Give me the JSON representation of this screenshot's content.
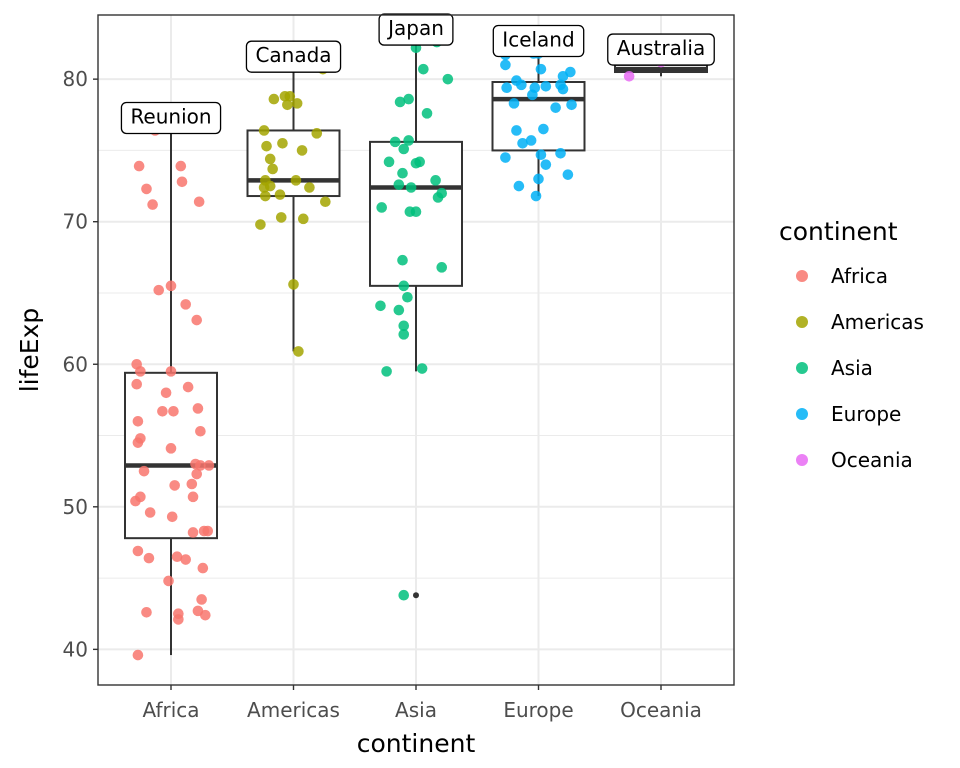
{
  "chart_data": {
    "type": "boxplot-with-jitter",
    "xlabel": "continent",
    "ylabel": "lifeExp",
    "ylim": [
      37.5,
      84.5
    ],
    "yticks": [
      40,
      50,
      60,
      70,
      80
    ],
    "categories": [
      "Africa",
      "Americas",
      "Asia",
      "Europe",
      "Oceania"
    ],
    "grid": true,
    "legend": {
      "title": "continent",
      "position": "right",
      "entries": [
        "Africa",
        "Americas",
        "Asia",
        "Europe",
        "Oceania"
      ]
    },
    "colors": {
      "Africa": "#F8766D",
      "Americas": "#A3A500",
      "Asia": "#00BF7D",
      "Europe": "#00B0F6",
      "Oceania": "#E76BF3"
    },
    "boxes": [
      {
        "category": "Africa",
        "min": 39.6,
        "q1": 47.8,
        "median": 52.9,
        "q3": 59.4,
        "max": 76.4
      },
      {
        "category": "Americas",
        "min": 60.9,
        "q1": 71.8,
        "median": 72.9,
        "q3": 76.4,
        "max": 80.7
      },
      {
        "category": "Asia",
        "min": 59.5,
        "q1": 65.5,
        "median": 72.4,
        "q3": 75.6,
        "max": 82.6
      },
      {
        "category": "Europe",
        "min": 71.8,
        "q1": 75.0,
        "median": 78.6,
        "q3": 79.8,
        "max": 81.8
      },
      {
        "category": "Oceania",
        "min": 80.2,
        "q1": 80.5,
        "median": 80.7,
        "q3": 81.0,
        "max": 81.2
      }
    ],
    "outliers": [
      {
        "category": "Asia",
        "y": 43.8
      }
    ],
    "annotations": [
      {
        "category": "Africa",
        "label": "Reunion",
        "y": 76.4
      },
      {
        "category": "Americas",
        "label": "Canada",
        "y": 80.7
      },
      {
        "category": "Asia",
        "label": "Japan",
        "y": 82.6
      },
      {
        "category": "Europe",
        "label": "Iceland",
        "y": 81.8
      },
      {
        "category": "Oceania",
        "label": "Australia",
        "y": 81.2
      }
    ],
    "points": [
      {
        "category": "Africa",
        "jitter": -0.27,
        "y": 39.6
      },
      {
        "category": "Africa",
        "jitter": 0.06,
        "y": 42.1
      },
      {
        "category": "Africa",
        "jitter": -0.2,
        "y": 42.6
      },
      {
        "category": "Africa",
        "jitter": 0.28,
        "y": 42.4
      },
      {
        "category": "Africa",
        "jitter": 0.22,
        "y": 42.7
      },
      {
        "category": "Africa",
        "jitter": 0.25,
        "y": 43.5
      },
      {
        "category": "Africa",
        "jitter": 0.06,
        "y": 42.5
      },
      {
        "category": "Africa",
        "jitter": -0.02,
        "y": 44.8
      },
      {
        "category": "Africa",
        "jitter": 0.26,
        "y": 45.7
      },
      {
        "category": "Africa",
        "jitter": -0.27,
        "y": 46.9
      },
      {
        "category": "Africa",
        "jitter": 0.05,
        "y": 46.5
      },
      {
        "category": "Africa",
        "jitter": -0.18,
        "y": 46.4
      },
      {
        "category": "Africa",
        "jitter": 0.12,
        "y": 46.3
      },
      {
        "category": "Africa",
        "jitter": 0.18,
        "y": 48.2
      },
      {
        "category": "Africa",
        "jitter": 0.27,
        "y": 48.3
      },
      {
        "category": "Africa",
        "jitter": 0.3,
        "y": 48.3
      },
      {
        "category": "Africa",
        "jitter": 0.01,
        "y": 49.3
      },
      {
        "category": "Africa",
        "jitter": -0.17,
        "y": 49.6
      },
      {
        "category": "Africa",
        "jitter": -0.29,
        "y": 50.4
      },
      {
        "category": "Africa",
        "jitter": -0.25,
        "y": 50.7
      },
      {
        "category": "Africa",
        "jitter": 0.18,
        "y": 50.7
      },
      {
        "category": "Africa",
        "jitter": 0.03,
        "y": 51.5
      },
      {
        "category": "Africa",
        "jitter": 0.17,
        "y": 51.6
      },
      {
        "category": "Africa",
        "jitter": -0.22,
        "y": 52.5
      },
      {
        "category": "Africa",
        "jitter": 0.21,
        "y": 52.3
      },
      {
        "category": "Africa",
        "jitter": 0.24,
        "y": 52.9
      },
      {
        "category": "Africa",
        "jitter": 0.31,
        "y": 52.9
      },
      {
        "category": "Africa",
        "jitter": 0.2,
        "y": 53.0
      },
      {
        "category": "Africa",
        "jitter": 0.0,
        "y": 54.1
      },
      {
        "category": "Africa",
        "jitter": -0.27,
        "y": 54.5
      },
      {
        "category": "Africa",
        "jitter": -0.25,
        "y": 54.8
      },
      {
        "category": "Africa",
        "jitter": 0.24,
        "y": 55.3
      },
      {
        "category": "Africa",
        "jitter": -0.27,
        "y": 56.0
      },
      {
        "category": "Africa",
        "jitter": -0.07,
        "y": 56.7
      },
      {
        "category": "Africa",
        "jitter": 0.02,
        "y": 56.7
      },
      {
        "category": "Africa",
        "jitter": 0.22,
        "y": 56.9
      },
      {
        "category": "Africa",
        "jitter": -0.04,
        "y": 58.0
      },
      {
        "category": "Africa",
        "jitter": 0.14,
        "y": 58.4
      },
      {
        "category": "Africa",
        "jitter": -0.28,
        "y": 58.6
      },
      {
        "category": "Africa",
        "jitter": -0.25,
        "y": 59.5
      },
      {
        "category": "Africa",
        "jitter": 0.0,
        "y": 59.5
      },
      {
        "category": "Africa",
        "jitter": -0.28,
        "y": 60.0
      },
      {
        "category": "Africa",
        "jitter": 0.21,
        "y": 63.1
      },
      {
        "category": "Africa",
        "jitter": 0.12,
        "y": 64.2
      },
      {
        "category": "Africa",
        "jitter": -0.1,
        "y": 65.2
      },
      {
        "category": "Africa",
        "jitter": 0.0,
        "y": 65.5
      },
      {
        "category": "Africa",
        "jitter": -0.15,
        "y": 71.2
      },
      {
        "category": "Africa",
        "jitter": 0.23,
        "y": 71.4
      },
      {
        "category": "Africa",
        "jitter": -0.2,
        "y": 72.3
      },
      {
        "category": "Africa",
        "jitter": 0.09,
        "y": 72.8
      },
      {
        "category": "Africa",
        "jitter": -0.26,
        "y": 73.9
      },
      {
        "category": "Africa",
        "jitter": 0.08,
        "y": 73.9
      },
      {
        "category": "Africa",
        "jitter": -0.13,
        "y": 76.4
      },
      {
        "category": "Americas",
        "jitter": 0.04,
        "y": 60.9
      },
      {
        "category": "Americas",
        "jitter": 0.0,
        "y": 65.6
      },
      {
        "category": "Americas",
        "jitter": -0.27,
        "y": 69.8
      },
      {
        "category": "Americas",
        "jitter": -0.1,
        "y": 70.3
      },
      {
        "category": "Americas",
        "jitter": 0.08,
        "y": 70.2
      },
      {
        "category": "Americas",
        "jitter": -0.23,
        "y": 71.8
      },
      {
        "category": "Americas",
        "jitter": -0.11,
        "y": 71.9
      },
      {
        "category": "Americas",
        "jitter": 0.26,
        "y": 71.4
      },
      {
        "category": "Americas",
        "jitter": -0.24,
        "y": 72.4
      },
      {
        "category": "Americas",
        "jitter": -0.19,
        "y": 72.5
      },
      {
        "category": "Americas",
        "jitter": 0.13,
        "y": 72.4
      },
      {
        "category": "Americas",
        "jitter": -0.23,
        "y": 72.9
      },
      {
        "category": "Americas",
        "jitter": 0.02,
        "y": 72.9
      },
      {
        "category": "Americas",
        "jitter": -0.17,
        "y": 73.7
      },
      {
        "category": "Americas",
        "jitter": -0.19,
        "y": 74.4
      },
      {
        "category": "Americas",
        "jitter": 0.07,
        "y": 75.0
      },
      {
        "category": "Americas",
        "jitter": -0.22,
        "y": 75.3
      },
      {
        "category": "Americas",
        "jitter": -0.09,
        "y": 75.5
      },
      {
        "category": "Americas",
        "jitter": -0.24,
        "y": 76.4
      },
      {
        "category": "Americas",
        "jitter": 0.19,
        "y": 76.2
      },
      {
        "category": "Americas",
        "jitter": -0.16,
        "y": 78.6
      },
      {
        "category": "Americas",
        "jitter": -0.07,
        "y": 78.8
      },
      {
        "category": "Americas",
        "jitter": -0.05,
        "y": 78.2
      },
      {
        "category": "Americas",
        "jitter": 0.03,
        "y": 78.3
      },
      {
        "category": "Americas",
        "jitter": -0.03,
        "y": 78.8
      },
      {
        "category": "Americas",
        "jitter": 0.24,
        "y": 80.7
      },
      {
        "category": "Asia",
        "jitter": -0.29,
        "y": 64.1
      },
      {
        "category": "Asia",
        "jitter": -0.1,
        "y": 43.8
      },
      {
        "category": "Asia",
        "jitter": -0.24,
        "y": 59.5
      },
      {
        "category": "Asia",
        "jitter": 0.05,
        "y": 59.7
      },
      {
        "category": "Asia",
        "jitter": -0.1,
        "y": 62.1
      },
      {
        "category": "Asia",
        "jitter": -0.1,
        "y": 62.7
      },
      {
        "category": "Asia",
        "jitter": -0.14,
        "y": 63.8
      },
      {
        "category": "Asia",
        "jitter": -0.07,
        "y": 64.7
      },
      {
        "category": "Asia",
        "jitter": -0.1,
        "y": 65.5
      },
      {
        "category": "Asia",
        "jitter": 0.21,
        "y": 66.8
      },
      {
        "category": "Asia",
        "jitter": -0.11,
        "y": 67.3
      },
      {
        "category": "Asia",
        "jitter": -0.28,
        "y": 71.0
      },
      {
        "category": "Asia",
        "jitter": -0.05,
        "y": 70.7
      },
      {
        "category": "Asia",
        "jitter": 0.0,
        "y": 70.7
      },
      {
        "category": "Asia",
        "jitter": 0.18,
        "y": 71.7
      },
      {
        "category": "Asia",
        "jitter": 0.21,
        "y": 72.0
      },
      {
        "category": "Asia",
        "jitter": -0.04,
        "y": 72.4
      },
      {
        "category": "Asia",
        "jitter": -0.14,
        "y": 72.6
      },
      {
        "category": "Asia",
        "jitter": 0.16,
        "y": 72.9
      },
      {
        "category": "Asia",
        "jitter": -0.11,
        "y": 73.4
      },
      {
        "category": "Asia",
        "jitter": -0.22,
        "y": 74.2
      },
      {
        "category": "Asia",
        "jitter": 0.0,
        "y": 74.1
      },
      {
        "category": "Asia",
        "jitter": 0.03,
        "y": 74.2
      },
      {
        "category": "Asia",
        "jitter": -0.1,
        "y": 75.1
      },
      {
        "category": "Asia",
        "jitter": -0.17,
        "y": 75.6
      },
      {
        "category": "Asia",
        "jitter": -0.06,
        "y": 75.7
      },
      {
        "category": "Asia",
        "jitter": 0.09,
        "y": 77.6
      },
      {
        "category": "Asia",
        "jitter": -0.13,
        "y": 78.4
      },
      {
        "category": "Asia",
        "jitter": -0.06,
        "y": 78.6
      },
      {
        "category": "Asia",
        "jitter": 0.26,
        "y": 80.0
      },
      {
        "category": "Asia",
        "jitter": 0.06,
        "y": 80.7
      },
      {
        "category": "Asia",
        "jitter": 0.0,
        "y": 82.2
      },
      {
        "category": "Asia",
        "jitter": 0.17,
        "y": 82.6
      },
      {
        "category": "Europe",
        "jitter": -0.27,
        "y": 74.5
      },
      {
        "category": "Europe",
        "jitter": -0.16,
        "y": 72.5
      },
      {
        "category": "Europe",
        "jitter": -0.02,
        "y": 71.8
      },
      {
        "category": "Europe",
        "jitter": 0.0,
        "y": 73.0
      },
      {
        "category": "Europe",
        "jitter": 0.24,
        "y": 73.3
      },
      {
        "category": "Europe",
        "jitter": 0.02,
        "y": 74.7
      },
      {
        "category": "Europe",
        "jitter": 0.06,
        "y": 74.0
      },
      {
        "category": "Europe",
        "jitter": 0.18,
        "y": 74.8
      },
      {
        "category": "Europe",
        "jitter": -0.13,
        "y": 75.5
      },
      {
        "category": "Europe",
        "jitter": -0.06,
        "y": 75.7
      },
      {
        "category": "Europe",
        "jitter": -0.18,
        "y": 76.4
      },
      {
        "category": "Europe",
        "jitter": 0.04,
        "y": 76.5
      },
      {
        "category": "Europe",
        "jitter": -0.2,
        "y": 78.3
      },
      {
        "category": "Europe",
        "jitter": -0.05,
        "y": 78.9
      },
      {
        "category": "Europe",
        "jitter": 0.14,
        "y": 78.0
      },
      {
        "category": "Europe",
        "jitter": 0.27,
        "y": 78.2
      },
      {
        "category": "Europe",
        "jitter": -0.26,
        "y": 79.4
      },
      {
        "category": "Europe",
        "jitter": -0.14,
        "y": 79.6
      },
      {
        "category": "Europe",
        "jitter": -0.03,
        "y": 79.4
      },
      {
        "category": "Europe",
        "jitter": 0.06,
        "y": 79.5
      },
      {
        "category": "Europe",
        "jitter": 0.18,
        "y": 79.6
      },
      {
        "category": "Europe",
        "jitter": 0.2,
        "y": 79.3
      },
      {
        "category": "Europe",
        "jitter": -0.18,
        "y": 79.9
      },
      {
        "category": "Europe",
        "jitter": 0.2,
        "y": 80.2
      },
      {
        "category": "Europe",
        "jitter": 0.26,
        "y": 80.5
      },
      {
        "category": "Europe",
        "jitter": -0.27,
        "y": 81.0
      },
      {
        "category": "Europe",
        "jitter": -0.27,
        "y": 81.7
      },
      {
        "category": "Europe",
        "jitter": -0.04,
        "y": 81.8
      },
      {
        "category": "Europe",
        "jitter": 0.0,
        "y": 81.8
      },
      {
        "category": "Europe",
        "jitter": 0.02,
        "y": 80.7
      },
      {
        "category": "Oceania",
        "jitter": -0.26,
        "y": 80.2
      },
      {
        "category": "Oceania",
        "jitter": 0.0,
        "y": 81.2
      }
    ]
  }
}
